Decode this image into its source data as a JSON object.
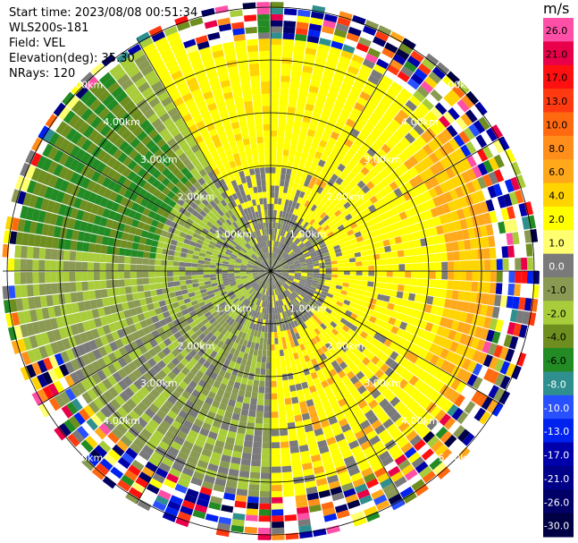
{
  "info": {
    "start_time": "Start time: 2023/08/08 00:51:34",
    "instrument": "WLS200s-181",
    "field": "Field: VEL",
    "elevation": "Elevation(deg): 35.30",
    "nrays": "NRays: 120"
  },
  "chart_data": {
    "type": "heatmap",
    "projection": "polar-ppi",
    "field": "VEL",
    "unit": "m/s",
    "rays": 120,
    "range_rings_km": [
      "1.00km",
      "2.00km",
      "3.00km",
      "4.00km",
      "5.00km"
    ],
    "colorbar": {
      "title": "m/s",
      "ticks": [
        "26.0",
        "21.0",
        "17.0",
        "13.0",
        "10.0",
        "8.0",
        "6.0",
        "4.0",
        "2.0",
        "1.0",
        "0.0",
        "-1.0",
        "-2.0",
        "-4.0",
        "-6.0",
        "-8.0",
        "-10.0",
        "-13.0",
        "-17.0",
        "-21.0",
        "-26.0",
        "-30.0"
      ],
      "colors": [
        "#ff4fa6",
        "#e8004a",
        "#ff1010",
        "#ff3a10",
        "#ff6a10",
        "#ff8e1a",
        "#ffa81a",
        "#ffd400",
        "#ffff00",
        "#ffff70",
        "#7a7a7a",
        "#8a9a52",
        "#a8cc3a",
        "#6e8e20",
        "#238b23",
        "#2f8f8f",
        "#2850ff",
        "#0022ee",
        "#0000aa",
        "#000088",
        "#000066",
        "#000044"
      ]
    },
    "sectors": [
      {
        "dir": "north-east",
        "dominant": "yellow/orange",
        "range_km": [
          0.4,
          4.2
        ]
      },
      {
        "dir": "east",
        "dominant": "yellow/orange",
        "range_km": [
          0.6,
          4.8
        ]
      },
      {
        "dir": "south-west",
        "dominant": "olive/green",
        "range_km": [
          0.2,
          4.6
        ]
      },
      {
        "dir": "north-west",
        "dominant": "green/olive",
        "range_km": [
          1.5,
          5.0
        ]
      },
      {
        "dir": "center",
        "dominant": "gray",
        "range_km": [
          0.0,
          1.3
        ]
      }
    ]
  }
}
